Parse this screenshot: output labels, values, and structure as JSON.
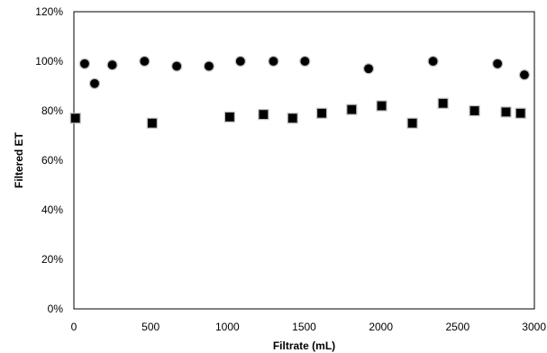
{
  "chart_data": {
    "type": "scatter",
    "title": "",
    "xlabel": "Filtrate (mL)",
    "ylabel": "Filtered ET",
    "xlim": [
      0,
      3000
    ],
    "ylim": [
      0,
      1.2
    ],
    "x_ticks": [
      0,
      500,
      1000,
      1500,
      2000,
      2500,
      3000
    ],
    "x_tick_labels": [
      "0",
      "500",
      "1000",
      "1500",
      "2000",
      "2500",
      "3000"
    ],
    "y_ticks": [
      0,
      0.2,
      0.4,
      0.6,
      0.8,
      1.0,
      1.2
    ],
    "y_tick_labels": [
      "0%",
      "20%",
      "40%",
      "60%",
      "80%",
      "100%",
      "120%"
    ],
    "grid": false,
    "legend": "none",
    "series": [
      {
        "marker": "circle",
        "color": "#000000",
        "x": [
          70,
          135,
          250,
          460,
          670,
          880,
          1085,
          1300,
          1505,
          1920,
          2340,
          2760,
          2935
        ],
        "y": [
          0.99,
          0.91,
          0.985,
          1.0,
          0.98,
          0.98,
          1.0,
          1.0,
          1.0,
          0.97,
          1.0,
          0.99,
          0.945
        ]
      },
      {
        "marker": "square",
        "color": "#000000",
        "x": [
          10,
          510,
          1015,
          1235,
          1425,
          1615,
          1810,
          2005,
          2205,
          2405,
          2610,
          2815,
          2910
        ],
        "y": [
          0.77,
          0.75,
          0.775,
          0.785,
          0.77,
          0.79,
          0.805,
          0.82,
          0.75,
          0.83,
          0.8,
          0.795,
          0.79
        ]
      }
    ]
  }
}
